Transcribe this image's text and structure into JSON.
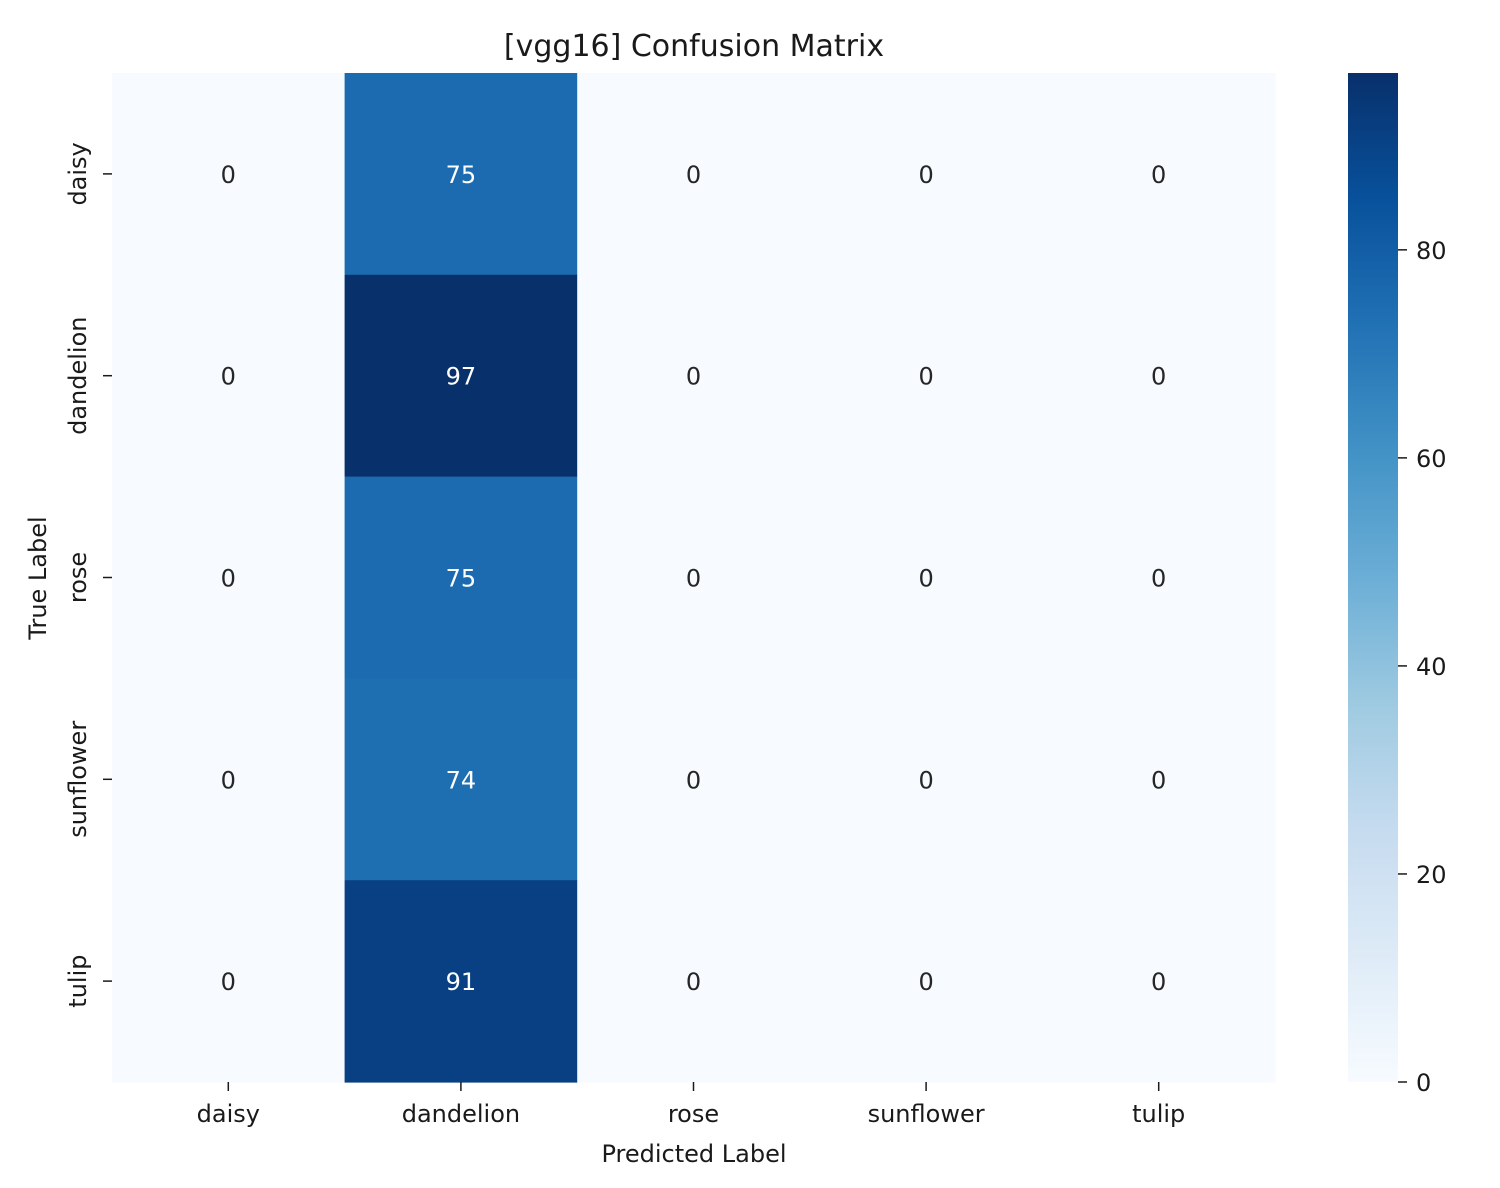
{
  "chart_data": {
    "type": "heatmap",
    "title": "[vgg16] Confusion Matrix",
    "xlabel": "Predicted Label",
    "ylabel": "True Label",
    "x_categories": [
      "daisy",
      "dandelion",
      "rose",
      "sunflower",
      "tulip"
    ],
    "y_categories": [
      "daisy",
      "dandelion",
      "rose",
      "sunflower",
      "tulip"
    ],
    "matrix": [
      [
        0,
        75,
        0,
        0,
        0
      ],
      [
        0,
        97,
        0,
        0,
        0
      ],
      [
        0,
        75,
        0,
        0,
        0
      ],
      [
        0,
        74,
        0,
        0,
        0
      ],
      [
        0,
        91,
        0,
        0,
        0
      ]
    ],
    "colormap": "Blues",
    "colorbar": {
      "range": [
        0,
        97
      ],
      "ticks": [
        0,
        20,
        40,
        60,
        80
      ],
      "tick_labels": [
        "0",
        "20",
        "40",
        "60",
        "80"
      ]
    },
    "grid": false
  }
}
